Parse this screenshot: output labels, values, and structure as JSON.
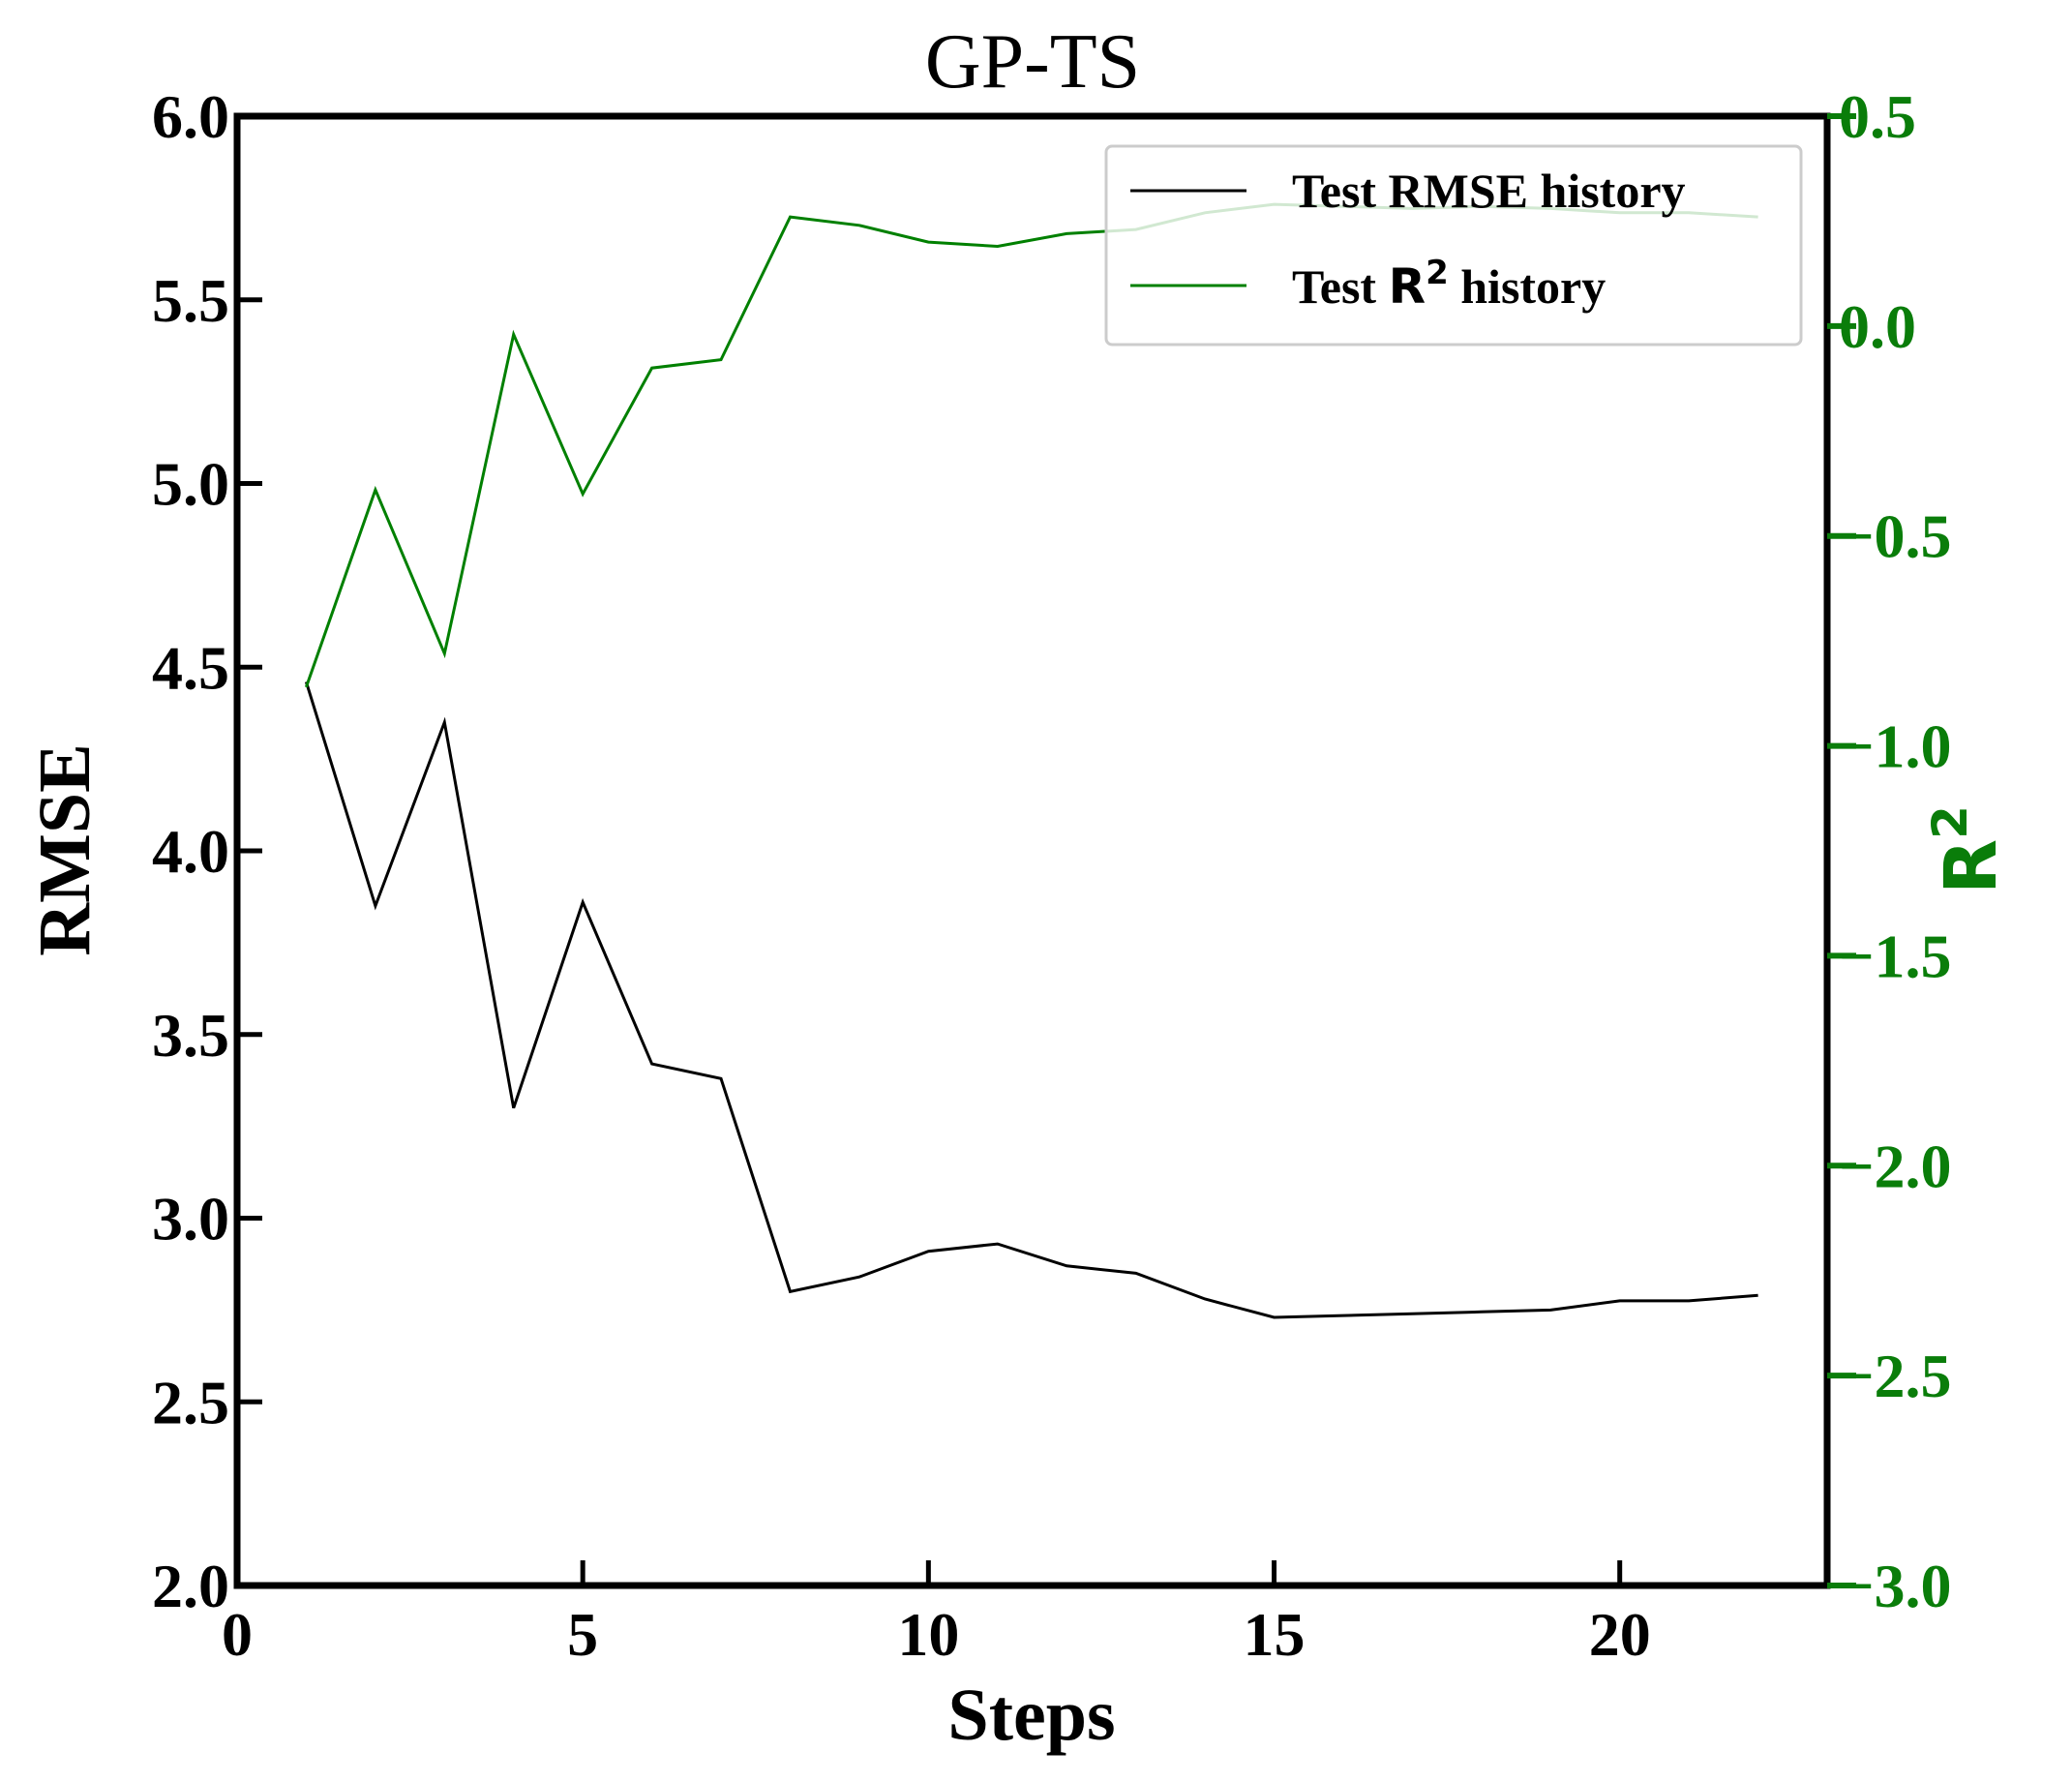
{
  "chart_data": {
    "type": "line",
    "title": "GP-TS",
    "xlabel": "Steps",
    "ylabel": "RMSE",
    "y2label": "R",
    "y2label_sup": "2",
    "xlim": [
      0,
      23
    ],
    "ylim": [
      2.0,
      6.0
    ],
    "y2lim": [
      -3.0,
      0.5
    ],
    "x_ticks": [
      "0",
      "5",
      "10",
      "15",
      "20"
    ],
    "y_ticks": [
      "2.0",
      "2.5",
      "3.0",
      "3.5",
      "4.0",
      "4.5",
      "5.0",
      "5.5",
      "6.0"
    ],
    "y2_ticks": [
      "−3.0",
      "−2.5",
      "−2.0",
      "−1.5",
      "−1.0",
      "−0.5",
      "0.0",
      "0.5"
    ],
    "x": [
      1,
      2,
      3,
      4,
      5,
      6,
      7,
      8,
      9,
      10,
      11,
      12,
      13,
      14,
      15,
      16,
      17,
      18,
      19,
      20,
      21,
      22
    ],
    "series": [
      {
        "name": "Test RMSE history",
        "axis": "left",
        "color": "#000000",
        "values": [
          4.46,
          3.85,
          4.35,
          3.3,
          3.86,
          3.42,
          3.38,
          2.8,
          2.84,
          2.91,
          2.93,
          2.87,
          2.85,
          2.78,
          2.73,
          2.735,
          2.74,
          2.745,
          2.75,
          2.775,
          2.775,
          2.79
        ]
      },
      {
        "name": "Test R² history",
        "axis": "right",
        "color": "#008000",
        "values": [
          -0.86,
          -0.39,
          -0.78,
          -0.02,
          -0.4,
          -0.1,
          -0.08,
          0.26,
          0.24,
          0.2,
          0.19,
          0.22,
          0.23,
          0.27,
          0.29,
          0.285,
          0.28,
          0.285,
          0.28,
          0.27,
          0.27,
          0.26
        ]
      }
    ],
    "legend": {
      "placement": "top-right",
      "rmse_label": "Test RMSE history",
      "r2_prefix": "Test ",
      "r2_symbol": "R",
      "r2_sup": "2",
      "r2_suffix": " history"
    },
    "grid": false,
    "colors": {
      "left_axis": "#000000",
      "right_axis": "#0a7d0a"
    }
  }
}
